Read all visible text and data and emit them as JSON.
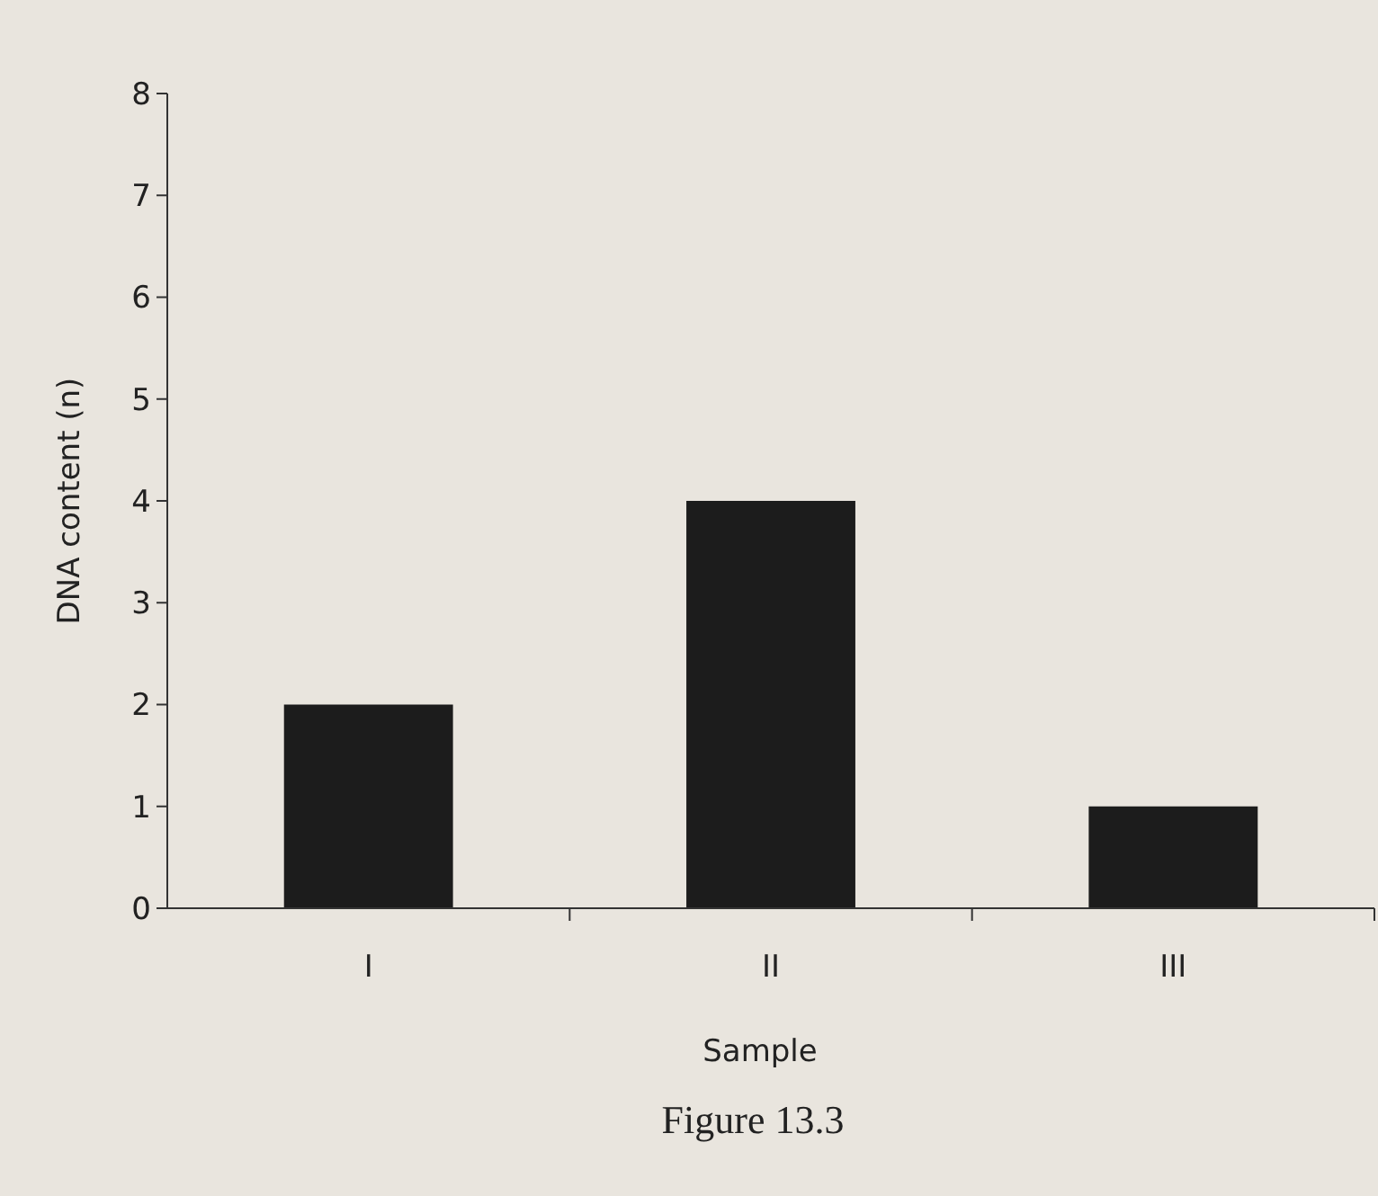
{
  "chart_data": {
    "type": "bar",
    "title": "Figure 13.3",
    "xlabel": "Sample",
    "ylabel": "DNA content (n)",
    "categories": [
      "I",
      "II",
      "III"
    ],
    "values": [
      2,
      4,
      1
    ],
    "color": "#1c1c1c",
    "ylim": [
      0,
      8
    ],
    "yticks": [
      0,
      1,
      2,
      3,
      4,
      5,
      6,
      7,
      8
    ]
  }
}
